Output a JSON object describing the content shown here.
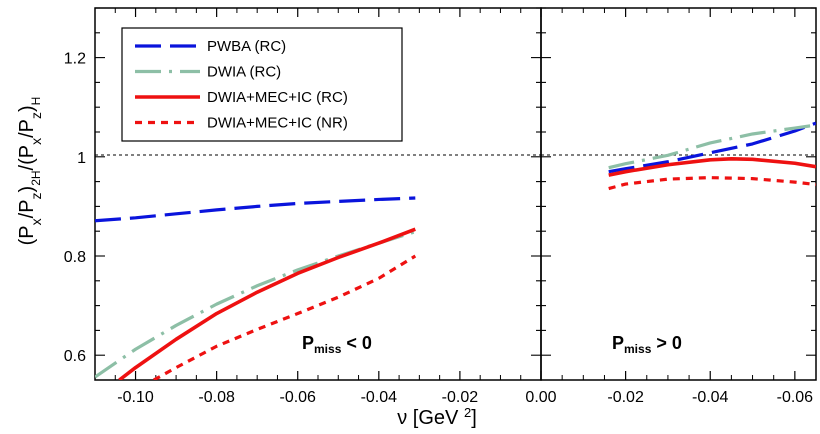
{
  "chart_data": {
    "type": "line",
    "ylabel": "(P_x/P_z)_2H/(P_x/P_z)_H",
    "xlabel": "ν [GeV 2]",
    "ylim": [
      0.55,
      1.3
    ],
    "reference_line_y": 1.0,
    "y_ticks": [
      "0.6",
      "0.8",
      "1",
      "1.2"
    ],
    "panels": [
      {
        "name": "left",
        "annotation": {
          "main": "P",
          "sub": "miss",
          "rest": " < 0"
        },
        "xlim": [
          -0.11,
          0.0
        ],
        "x_ticks": [
          "-0.10",
          "-0.08",
          "-0.06",
          "-0.04",
          "-0.02",
          "0.00"
        ],
        "series": [
          {
            "name": "PWBA (RC)",
            "color": "#0a14dc",
            "style": "dash",
            "x": [
              -0.11,
              -0.1,
              -0.09,
              -0.08,
              -0.07,
              -0.06,
              -0.05,
              -0.04,
              -0.031
            ],
            "y": [
              0.871,
              0.877,
              0.885,
              0.893,
              0.9,
              0.906,
              0.91,
              0.914,
              0.917
            ]
          },
          {
            "name": "DWIA (RC)",
            "color": "#8dbfa6",
            "style": "dashdot",
            "x": [
              -0.11,
              -0.1,
              -0.09,
              -0.08,
              -0.07,
              -0.06,
              -0.05,
              -0.04,
              -0.031
            ],
            "y": [
              0.556,
              0.612,
              0.66,
              0.703,
              0.74,
              0.772,
              0.8,
              0.826,
              0.849
            ]
          },
          {
            "name": "DWIA+MEC+IC (RC)",
            "color": "#ee1111",
            "style": "solid",
            "x": [
              -0.104,
              -0.1,
              -0.09,
              -0.08,
              -0.07,
              -0.06,
              -0.05,
              -0.04,
              -0.031
            ],
            "y": [
              0.55,
              0.575,
              0.632,
              0.684,
              0.727,
              0.765,
              0.797,
              0.826,
              0.854
            ]
          },
          {
            "name": "DWIA+MEC+IC (NR)",
            "color": "#ee1111",
            "style": "dot",
            "x": [
              -0.0955,
              -0.09,
              -0.08,
              -0.07,
              -0.06,
              -0.05,
              -0.04,
              -0.031
            ],
            "y": [
              0.55,
              0.575,
              0.618,
              0.652,
              0.684,
              0.717,
              0.755,
              0.8
            ]
          }
        ]
      },
      {
        "name": "right",
        "annotation": {
          "main": "P",
          "sub": "miss",
          "rest": " > 0"
        },
        "xlim": [
          0.0,
          -0.065
        ],
        "x_ticks": [
          "-0.02",
          "-0.04",
          "-0.06"
        ],
        "series": [
          {
            "name": "PWBA (RC)",
            "color": "#0a14dc",
            "style": "dash",
            "x": [
              -0.016,
              -0.02,
              -0.03,
              -0.04,
              -0.05,
              -0.06,
              -0.065
            ],
            "y": [
              0.97,
              0.976,
              0.99,
              1.008,
              1.026,
              1.052,
              1.068
            ]
          },
          {
            "name": "DWIA (RC)",
            "color": "#8dbfa6",
            "style": "dashdot",
            "x": [
              -0.016,
              -0.02,
              -0.03,
              -0.04,
              -0.05,
              -0.06,
              -0.065
            ],
            "y": [
              0.978,
              0.986,
              1.003,
              1.028,
              1.046,
              1.058,
              1.064
            ]
          },
          {
            "name": "DWIA+MEC+IC (RC)",
            "color": "#ee1111",
            "style": "solid",
            "x": [
              -0.016,
              -0.02,
              -0.03,
              -0.04,
              -0.045,
              -0.05,
              -0.06,
              -0.065
            ],
            "y": [
              0.963,
              0.97,
              0.984,
              0.994,
              0.996,
              0.995,
              0.987,
              0.98
            ]
          },
          {
            "name": "DWIA+MEC+IC (NR)",
            "color": "#ee1111",
            "style": "dot",
            "x": [
              -0.016,
              -0.02,
              -0.03,
              -0.04,
              -0.05,
              -0.06,
              -0.065
            ],
            "y": [
              0.936,
              0.945,
              0.955,
              0.958,
              0.956,
              0.949,
              0.944
            ]
          }
        ]
      }
    ],
    "legend": {
      "position": "top-left",
      "entries": [
        {
          "label": "PWBA (RC)",
          "color": "#0a14dc",
          "style": "dash"
        },
        {
          "label": "DWIA (RC)",
          "color": "#8dbfa6",
          "style": "dashdot"
        },
        {
          "label": "DWIA+MEC+IC (RC)",
          "color": "#ee1111",
          "style": "solid"
        },
        {
          "label": "DWIA+MEC+IC (NR)",
          "color": "#ee1111",
          "style": "dot"
        }
      ]
    }
  }
}
